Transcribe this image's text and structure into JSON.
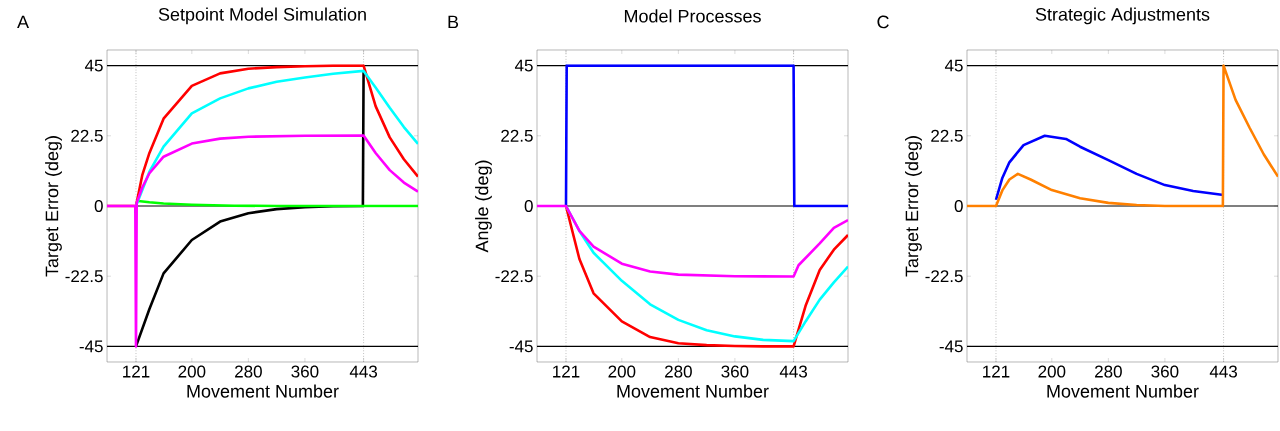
{
  "chart_data": [
    {
      "type": "line",
      "title": "Setpoint Model Simulation",
      "xlabel": "Movement Number",
      "ylabel": "Target Error (deg)",
      "annotations": [
        "A"
      ],
      "xlim": [
        80,
        520
      ],
      "ylim": [
        -50,
        50
      ],
      "xticks": [
        121,
        200,
        280,
        360,
        443
      ],
      "yticks": [
        -45,
        -22.5,
        0,
        22.5,
        45
      ],
      "ref_lines": [
        {
          "axis": "y",
          "value": 45,
          "color": "#000000",
          "line_style": "solid"
        },
        {
          "axis": "y",
          "value": 0,
          "color": "#000000",
          "line_style": "solid"
        },
        {
          "axis": "y",
          "value": -45,
          "color": "#000000",
          "line_style": "solid"
        },
        {
          "axis": "x",
          "value": 121,
          "color": "#808080",
          "line_style": "dotted"
        },
        {
          "axis": "x",
          "value": 443,
          "color": "#808080",
          "line_style": "dotted"
        }
      ],
      "series": [
        {
          "color": "#000000",
          "x": [
            121,
            140,
            160,
            200,
            240,
            280,
            320,
            360,
            400,
            442,
            443
          ],
          "values": [
            -45,
            -33,
            -21.6,
            -10.9,
            -5,
            -2.3,
            -1,
            -0.4,
            -0.1,
            0,
            43.3
          ]
        },
        {
          "color": "#00ff00",
          "x": [
            121,
            140,
            160,
            200,
            260,
            320,
            443,
            520
          ],
          "values": [
            1.7,
            1.2,
            0.8,
            0.4,
            0.1,
            0,
            0,
            0
          ]
        },
        {
          "color": "#ff0000",
          "x": [
            80,
            121,
            130,
            140,
            160,
            200,
            240,
            280,
            320,
            360,
            400,
            443,
            460,
            480,
            500,
            520
          ],
          "values": [
            0,
            0,
            10,
            17,
            28,
            38.5,
            42.5,
            44,
            44.5,
            44.8,
            45,
            45,
            32,
            22,
            15,
            9.4
          ]
        },
        {
          "color": "#00ffff",
          "x": [
            121,
            130,
            140,
            160,
            200,
            240,
            280,
            320,
            360,
            400,
            443,
            460,
            480,
            500,
            520
          ],
          "values": [
            0,
            null,
            11,
            19,
            29.7,
            34.5,
            37.7,
            39.8,
            41.2,
            42.4,
            43.3,
            38,
            31.5,
            25.3,
            19.9
          ]
        },
        {
          "color": "#ff00ff",
          "x": [
            80,
            120,
            121,
            122,
            130,
            140,
            160,
            200,
            240,
            280,
            360,
            443,
            460,
            480,
            500,
            520
          ],
          "values": [
            0,
            0,
            -45,
            1,
            6,
            10.5,
            15.8,
            20,
            21.6,
            22.2,
            22.5,
            22.6,
            17,
            11.5,
            7.5,
            4.6
          ]
        }
      ]
    },
    {
      "type": "line",
      "title": "Model Processes",
      "xlabel": "Movement Number",
      "ylabel": "Angle (deg)",
      "annotations": [
        "B"
      ],
      "xlim": [
        80,
        520
      ],
      "ylim": [
        -50,
        50
      ],
      "xticks": [
        121,
        200,
        280,
        360,
        443
      ],
      "yticks": [
        -45,
        -22.5,
        0,
        22.5,
        45
      ],
      "ref_lines": [
        {
          "axis": "y",
          "value": 45,
          "color": "#000000",
          "line_style": "solid"
        },
        {
          "axis": "y",
          "value": 0,
          "color": "#000000",
          "line_style": "solid"
        },
        {
          "axis": "y",
          "value": -45,
          "color": "#000000",
          "line_style": "solid"
        },
        {
          "axis": "x",
          "value": 121,
          "color": "#808080",
          "line_style": "dotted"
        },
        {
          "axis": "x",
          "value": 443,
          "color": "#808080",
          "line_style": "dotted"
        }
      ],
      "series": [
        {
          "color": "#0000ff",
          "x": [
            121,
            122,
            443,
            444,
            520
          ],
          "values": [
            0,
            45,
            45,
            0,
            0
          ]
        },
        {
          "color": "#ff0000",
          "x": [
            121,
            140,
            160,
            200,
            240,
            280,
            320,
            360,
            400,
            443,
            460,
            480,
            500,
            520
          ],
          "values": [
            0,
            -17,
            -28,
            -37,
            -42,
            -44,
            -44.6,
            -44.9,
            -45,
            -45,
            -32,
            -20.5,
            -14,
            -9.3
          ]
        },
        {
          "color": "#00ffff",
          "x": [
            121,
            140,
            160,
            200,
            240,
            280,
            320,
            360,
            400,
            443,
            460,
            480,
            500,
            520
          ],
          "values": [
            0,
            -8,
            -15,
            -24,
            -31.5,
            -36.5,
            -39.8,
            -41.8,
            -42.9,
            -43.3,
            -37,
            -30,
            -24.5,
            -19.4
          ]
        },
        {
          "color": "#ff00ff",
          "x": [
            80,
            121,
            140,
            160,
            200,
            240,
            280,
            360,
            443,
            450,
            480,
            500,
            520
          ],
          "values": [
            0,
            0,
            -8,
            -13,
            -18.5,
            -21,
            -22,
            -22.5,
            -22.6,
            -19,
            -12,
            -7,
            -4.5
          ]
        }
      ]
    },
    {
      "type": "line",
      "title": "Strategic Adjustments",
      "xlabel": "Movement Number",
      "ylabel": "Target Error (deg)",
      "annotations": [
        "C"
      ],
      "xlim": [
        80,
        520
      ],
      "ylim": [
        -50,
        50
      ],
      "xticks": [
        121,
        200,
        280,
        360,
        443
      ],
      "yticks": [
        -45,
        -22.5,
        0,
        22.5,
        45
      ],
      "ref_lines": [
        {
          "axis": "y",
          "value": 45,
          "color": "#000000",
          "line_style": "solid"
        },
        {
          "axis": "y",
          "value": 0,
          "color": "#000000",
          "line_style": "solid"
        },
        {
          "axis": "y",
          "value": -45,
          "color": "#000000",
          "line_style": "solid"
        },
        {
          "axis": "x",
          "value": 121,
          "color": "#808080",
          "line_style": "dotted"
        },
        {
          "axis": "x",
          "value": 443,
          "color": "#808080",
          "line_style": "dotted"
        }
      ],
      "series": [
        {
          "color": "#0000ff",
          "x": [
            121,
            130,
            140,
            160,
            190,
            220,
            240,
            280,
            320,
            360,
            400,
            443
          ],
          "values": [
            2,
            9,
            14,
            19.5,
            22.5,
            21.5,
            19,
            14.7,
            10.3,
            6.7,
            4.8,
            3.5
          ]
        },
        {
          "color": "#ff8000",
          "x": [
            80,
            121,
            130,
            140,
            152,
            170,
            200,
            240,
            280,
            320,
            360,
            442,
            443,
            460,
            480,
            500,
            520
          ],
          "values": [
            0,
            0,
            5,
            8.5,
            10.3,
            8.5,
            5.1,
            2.5,
            1,
            0.3,
            0,
            0,
            45,
            34,
            25,
            16.5,
            9.4
          ]
        }
      ]
    }
  ]
}
